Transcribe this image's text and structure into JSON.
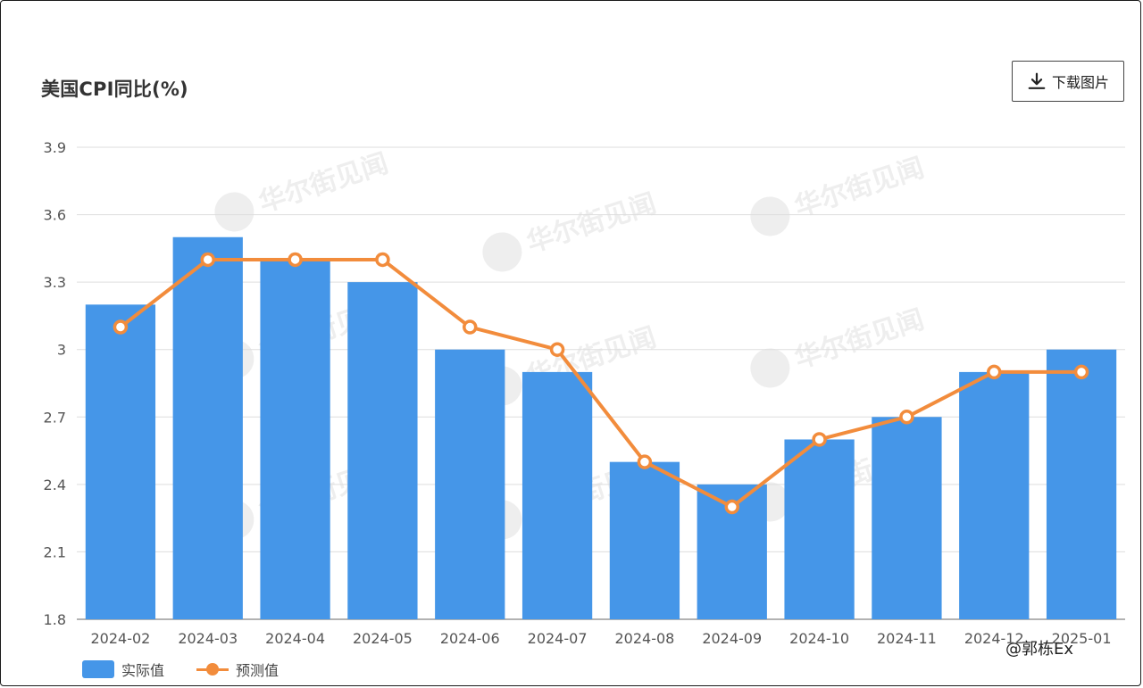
{
  "title": "美国CPI同比(%)",
  "download_label": "下载图片",
  "legend": {
    "actual": "实际值",
    "forecast": "预测值"
  },
  "watermark": "华尔街见闻",
  "corner_watermark": "@郭栋Ex",
  "colors": {
    "bar": "#4596E8",
    "line": "#F28C3C",
    "grid": "#DDDDDD"
  },
  "chart_data": {
    "type": "bar",
    "title": "美国CPI同比(%)",
    "categories": [
      "2024-02",
      "2024-03",
      "2024-04",
      "2024-05",
      "2024-06",
      "2024-07",
      "2024-08",
      "2024-09",
      "2024-10",
      "2024-11",
      "2024-12",
      "2025-01"
    ],
    "series": [
      {
        "name": "实际值",
        "type": "bar",
        "values": [
          3.2,
          3.5,
          3.4,
          3.3,
          3.0,
          2.9,
          2.5,
          2.4,
          2.6,
          2.7,
          2.9,
          3.0
        ]
      },
      {
        "name": "预测值",
        "type": "line",
        "values": [
          3.1,
          3.4,
          3.4,
          3.4,
          3.1,
          3.0,
          2.5,
          2.3,
          2.6,
          2.7,
          2.9,
          2.9
        ]
      }
    ],
    "yticks": [
      "1.8",
      "2.1",
      "2.4",
      "2.7",
      "3",
      "3.3",
      "3.6",
      "3.9"
    ],
    "ylim": [
      1.8,
      3.9
    ],
    "grid": true,
    "legend": "bottom-left"
  }
}
